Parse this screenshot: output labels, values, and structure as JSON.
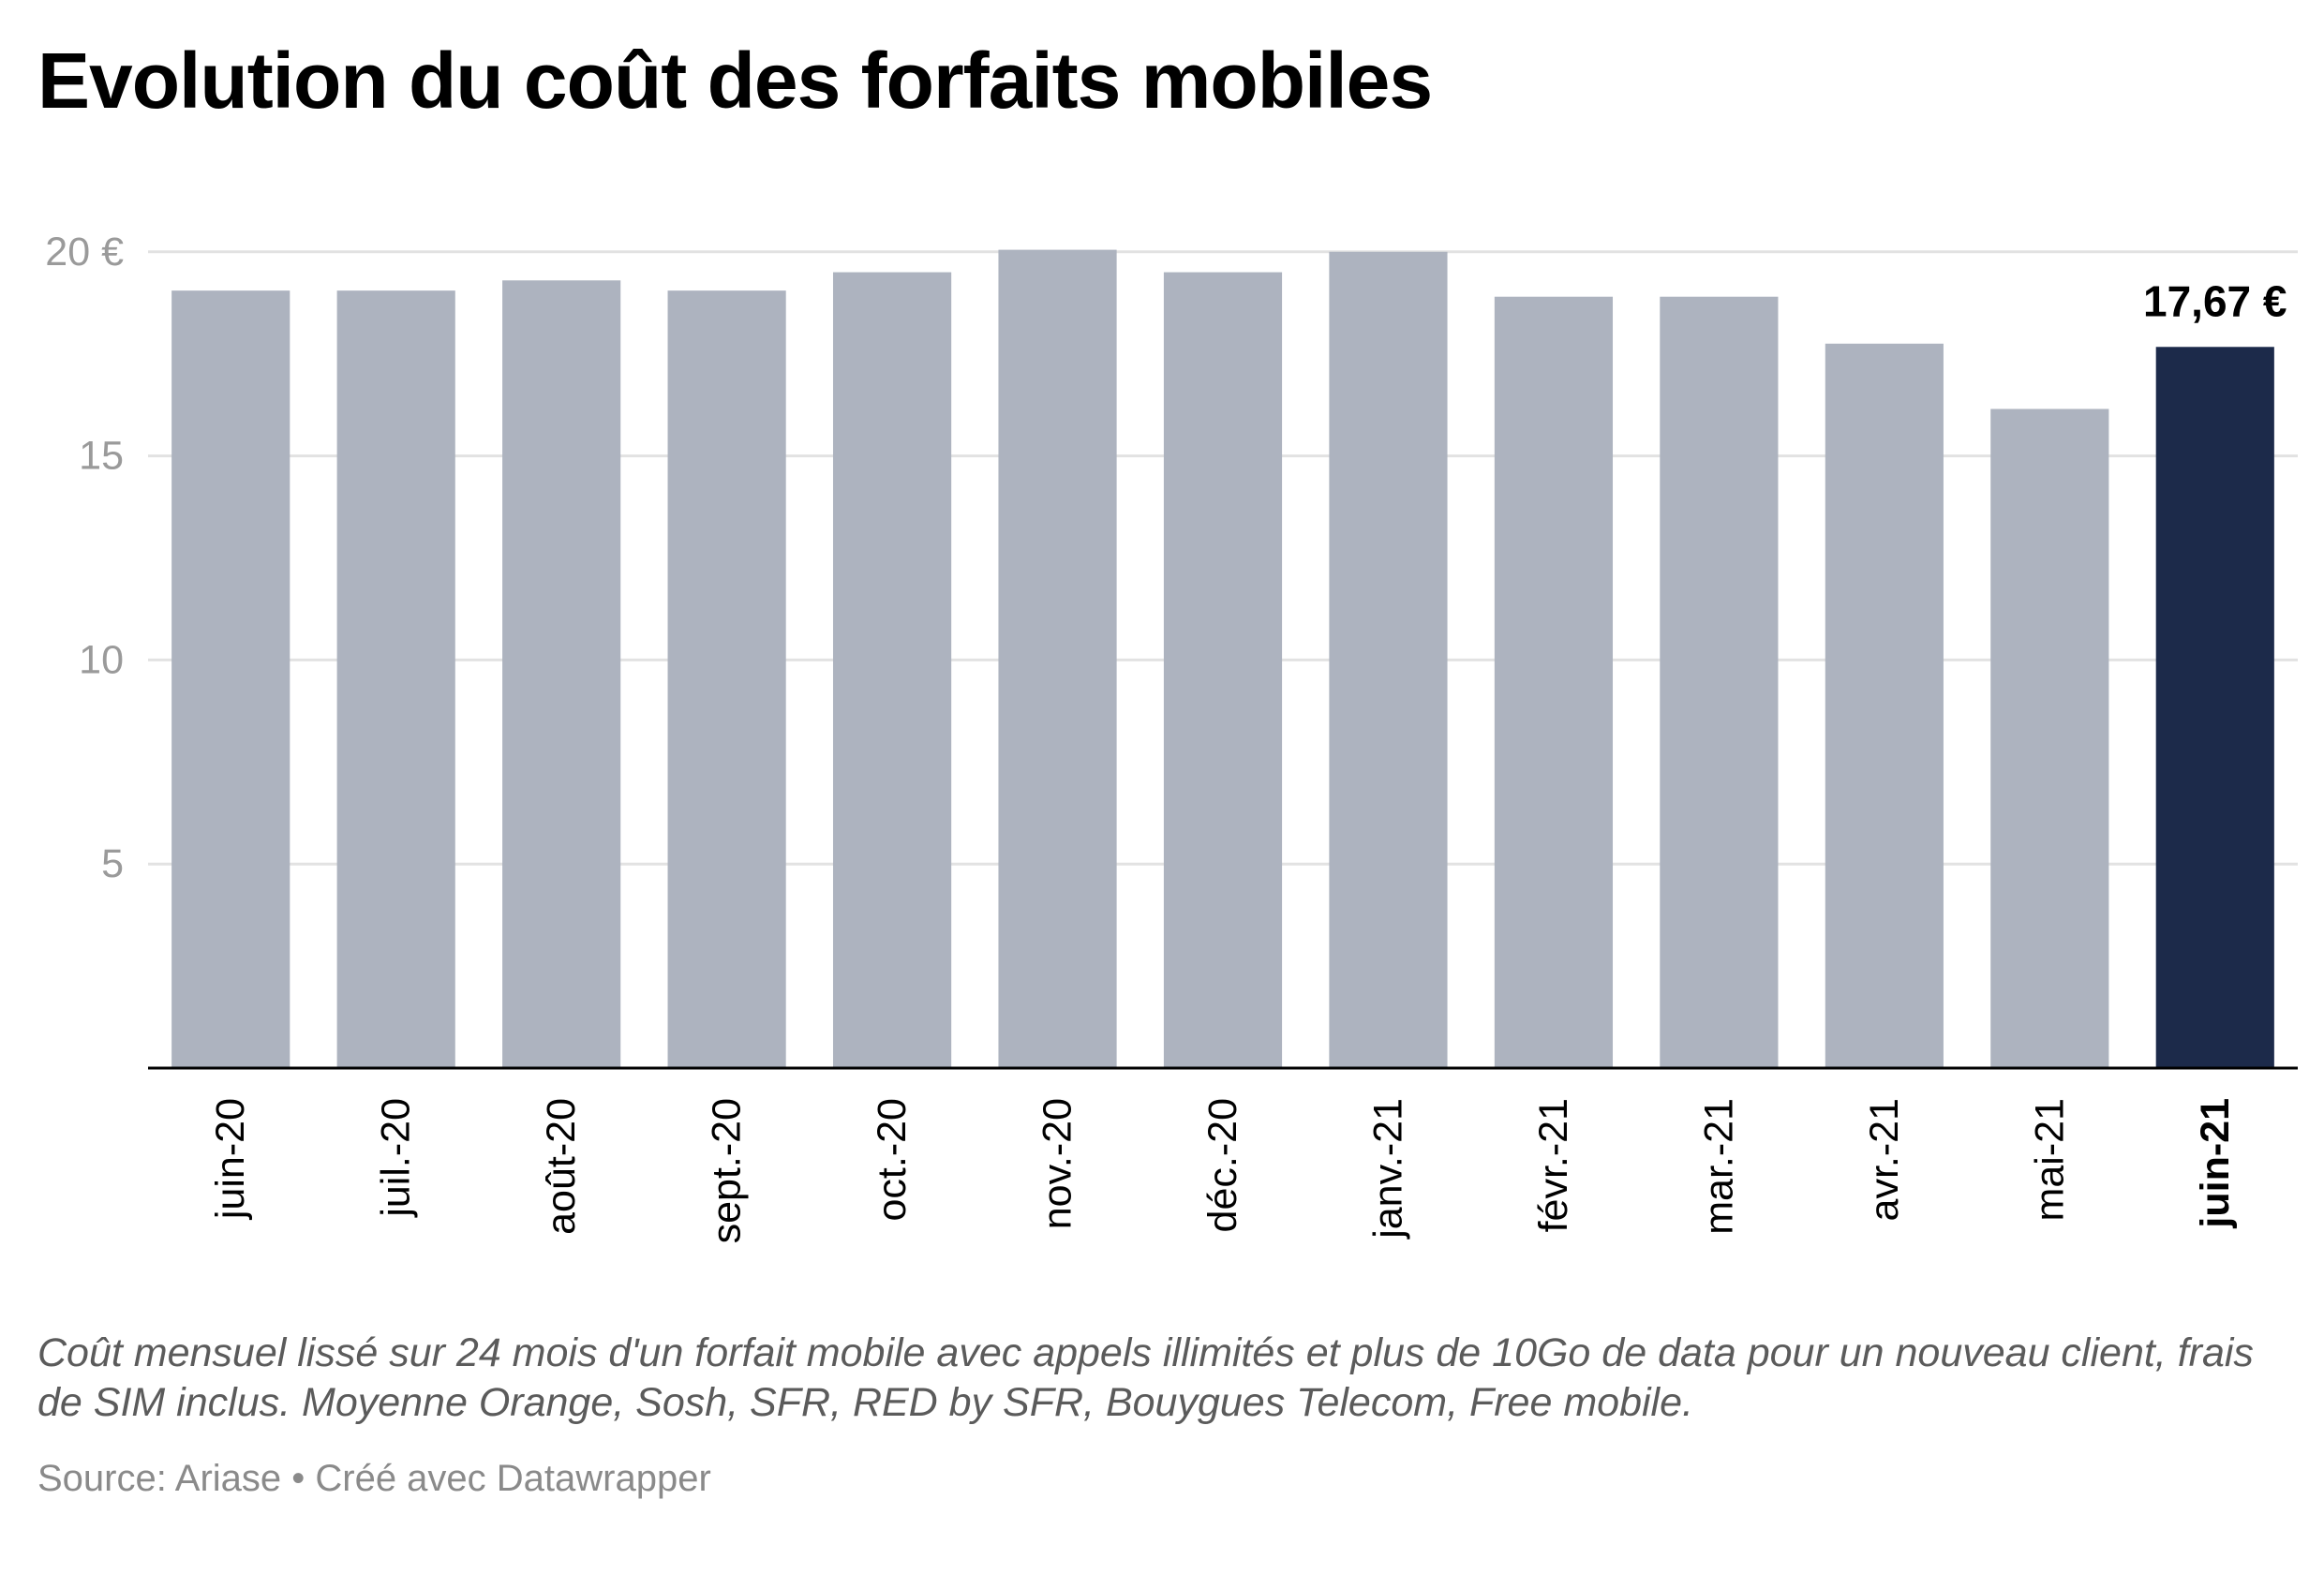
{
  "chart_data": {
    "type": "bar",
    "title": "Evolution du coût des forfaits mobiles",
    "categories": [
      "juin-20",
      "juil.-20",
      "août-20",
      "sept.-20",
      "oct.-20",
      "nov.-20",
      "déc.-20",
      "janv.-21",
      "févr.-21",
      "mar.-21",
      "avr.-21",
      "mai-21",
      "juin-21"
    ],
    "values": [
      19.05,
      19.05,
      19.3,
      19.05,
      19.5,
      20.05,
      19.5,
      20.0,
      18.9,
      18.9,
      17.75,
      16.15,
      17.67
    ],
    "ylim": [
      0,
      20.5
    ],
    "y_ticks": [
      {
        "value": 5,
        "label": "5"
      },
      {
        "value": 10,
        "label": "10"
      },
      {
        "value": 15,
        "label": "15"
      },
      {
        "value": 20,
        "label": "20 €"
      }
    ],
    "grid": true,
    "highlight_index": 12,
    "highlight_label": "17,67 €",
    "colors": {
      "bar": "#adb3bf",
      "highlight": "#1c2a4a",
      "grid": "#e2e2e2",
      "axis": "#000000",
      "tick_text": "#9a9a9a"
    },
    "description": "Coût mensuel lissé sur 24 mois d'un forfait mobile avec appels illimités et plus de 10Go de data pour un nouveau client, frais de SIM inclus. Moyenne Orange, Sosh, SFR, RED by SFR, Bouygues Telecom, Free mobile.",
    "source": "Source: Ariase • Créé avec Datawrapper"
  }
}
